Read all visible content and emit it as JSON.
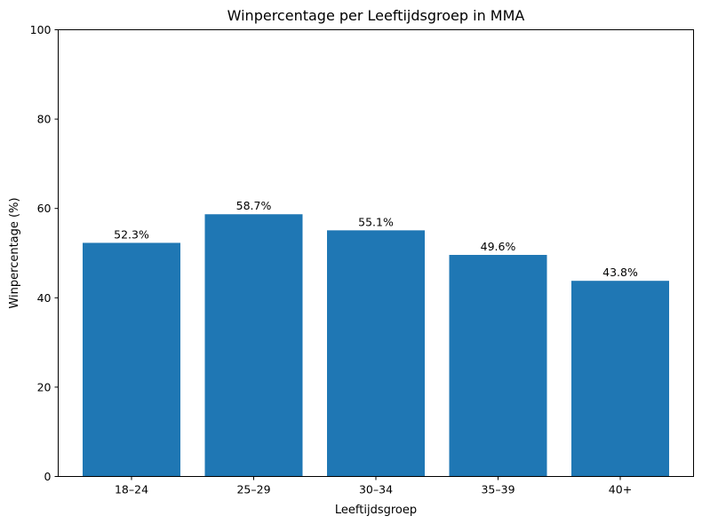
{
  "chart_data": {
    "type": "bar",
    "title": "Winpercentage per Leeftijdsgroep in MMA",
    "xlabel": "Leeftijdsgroep",
    "ylabel": "Winpercentage (%)",
    "categories": [
      "18–24",
      "25–29",
      "30–34",
      "35–39",
      "40+"
    ],
    "values": [
      52.3,
      58.7,
      55.1,
      49.6,
      43.8
    ],
    "data_labels": [
      "52.3%",
      "58.7%",
      "55.1%",
      "49.6%",
      "43.8%"
    ],
    "ylim": [
      0,
      100
    ],
    "yticks": [
      0,
      20,
      40,
      60,
      80,
      100
    ],
    "bar_color": "#1f77b4",
    "grid": false,
    "legend": false
  }
}
